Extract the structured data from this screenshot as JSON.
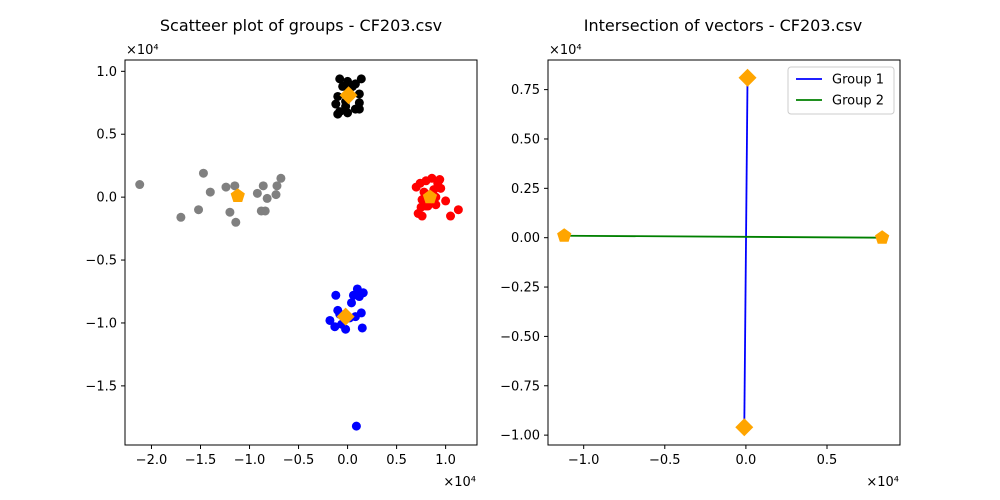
{
  "chart_data": [
    {
      "type": "scatter",
      "title": "Scatteer plot of groups - CF203.csv",
      "x_multiplier": "×10⁴",
      "y_multiplier": "×10⁴",
      "xlim": [
        -2.27,
        1.32
      ],
      "ylim": [
        -1.97,
        1.09
      ],
      "xticks": [
        -2.0,
        -1.5,
        -1.0,
        -0.5,
        0.0,
        0.5,
        1.0
      ],
      "xtick_labels": [
        "−2.0",
        "−1.5",
        "−1.0",
        "−0.5",
        "0.0",
        "0.5",
        "1.0"
      ],
      "yticks": [
        -1.5,
        -1.0,
        -0.5,
        0.0,
        0.5,
        1.0
      ],
      "ytick_labels": [
        "−1.5",
        "−1.0",
        "−0.5",
        "0.0",
        "0.5",
        "1.0"
      ],
      "series": [
        {
          "color": "#808080",
          "points": [
            [
              -2.12,
              0.1
            ],
            [
              -1.7,
              -0.16
            ],
            [
              -1.52,
              -0.1
            ],
            [
              -1.47,
              0.19
            ],
            [
              -1.4,
              0.04
            ],
            [
              -1.24,
              0.08
            ],
            [
              -1.2,
              -0.12
            ],
            [
              -1.15,
              0.09
            ],
            [
              -1.14,
              -0.2
            ],
            [
              -0.92,
              0.03
            ],
            [
              -0.88,
              -0.11
            ],
            [
              -0.86,
              0.09
            ],
            [
              -0.84,
              -0.11
            ],
            [
              -0.82,
              -0.01
            ],
            [
              -0.73,
              0.02
            ],
            [
              -0.72,
              0.09
            ],
            [
              -0.68,
              0.15
            ]
          ]
        },
        {
          "color": "#000000",
          "points": [
            [
              -0.08,
              0.94
            ],
            [
              0.0,
              0.92
            ],
            [
              0.14,
              0.94
            ],
            [
              -0.05,
              0.88
            ],
            [
              0.02,
              0.86
            ],
            [
              0.08,
              0.9
            ],
            [
              -0.1,
              0.8
            ],
            [
              0.12,
              0.82
            ],
            [
              -0.12,
              0.74
            ],
            [
              0.12,
              0.75
            ],
            [
              -0.02,
              0.72
            ],
            [
              0.08,
              0.7
            ],
            [
              -0.08,
              0.68
            ],
            [
              0.0,
              0.67
            ],
            [
              0.12,
              0.7
            ],
            [
              -0.1,
              0.66
            ],
            [
              0.05,
              0.88
            ],
            [
              -0.02,
              0.76
            ]
          ]
        },
        {
          "color": "#ff0000",
          "points": [
            [
              0.7,
              0.08
            ],
            [
              0.74,
              0.11
            ],
            [
              0.76,
              -0.02
            ],
            [
              0.78,
              0.04
            ],
            [
              0.8,
              0.13
            ],
            [
              0.82,
              -0.07
            ],
            [
              0.84,
              0.02
            ],
            [
              0.86,
              0.15
            ],
            [
              0.88,
              0.06
            ],
            [
              0.9,
              -0.06
            ],
            [
              0.92,
              0.11
            ],
            [
              0.94,
              0.14
            ],
            [
              0.95,
              0.07
            ],
            [
              0.72,
              -0.13
            ],
            [
              0.76,
              -0.15
            ],
            [
              0.75,
              -0.08
            ],
            [
              0.8,
              -0.07
            ],
            [
              1.0,
              -0.03
            ],
            [
              1.05,
              -0.15
            ],
            [
              1.13,
              -0.1
            ],
            [
              0.9,
              0.0
            ]
          ]
        },
        {
          "color": "#0000ff",
          "points": [
            [
              -0.18,
              -0.98
            ],
            [
              -0.13,
              -1.03
            ],
            [
              -0.08,
              -0.93
            ],
            [
              -0.06,
              -1.01
            ],
            [
              -0.1,
              -0.9
            ],
            [
              0.02,
              -0.96
            ],
            [
              0.04,
              -0.84
            ],
            [
              0.06,
              -0.78
            ],
            [
              0.1,
              -0.73
            ],
            [
              0.12,
              -0.79
            ],
            [
              0.14,
              -0.92
            ],
            [
              0.15,
              -1.04
            ],
            [
              -0.12,
              -0.78
            ],
            [
              -0.02,
              -1.05
            ],
            [
              0.08,
              -0.95
            ],
            [
              0.16,
              -0.76
            ],
            [
              0.09,
              -1.82
            ]
          ]
        }
      ],
      "centroids": [
        {
          "marker": "pentagon",
          "color": "#ffa500",
          "x": -1.12,
          "y": 0.01
        },
        {
          "marker": "diamond",
          "color": "#ffa500",
          "x": 0.01,
          "y": 0.81
        },
        {
          "marker": "pentagon",
          "color": "#ffa500",
          "x": 0.84,
          "y": 0.0
        },
        {
          "marker": "diamond",
          "color": "#ffa500",
          "x": -0.02,
          "y": -0.95
        }
      ]
    },
    {
      "type": "line",
      "title": "Intersection of vectors - CF203.csv",
      "x_multiplier": "×10⁴",
      "y_multiplier": "×10⁴",
      "xlim": [
        -1.22,
        0.95
      ],
      "ylim": [
        -1.05,
        0.9
      ],
      "xticks": [
        -1.0,
        -0.5,
        0.0,
        0.5
      ],
      "xtick_labels": [
        "−1.0",
        "−0.5",
        "0.0",
        "0.5"
      ],
      "yticks": [
        -1.0,
        -0.75,
        -0.5,
        -0.25,
        0.0,
        0.25,
        0.5,
        0.75
      ],
      "ytick_labels": [
        "−1.00",
        "−0.75",
        "−0.50",
        "−0.25",
        "0.00",
        "0.25",
        "0.50",
        "0.75"
      ],
      "legend_position": "top-right",
      "series": [
        {
          "name": "Group 1",
          "color": "#0000ff",
          "marker": "diamond",
          "marker_color": "#ffa500",
          "points": [
            [
              0.01,
              0.81
            ],
            [
              -0.01,
              -0.96
            ]
          ]
        },
        {
          "name": "Group 2",
          "color": "#008000",
          "marker": "pentagon",
          "marker_color": "#ffa500",
          "points": [
            [
              -1.12,
              0.01
            ],
            [
              0.84,
              0.0
            ]
          ]
        }
      ]
    }
  ]
}
